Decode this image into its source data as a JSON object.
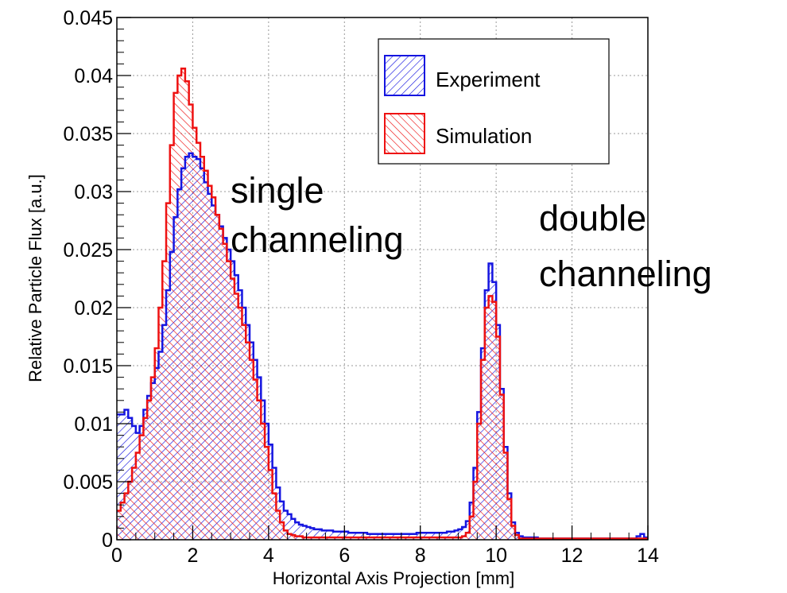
{
  "chart_data": {
    "type": "histogram",
    "xlabel": "Horizontal Axis Projection [mm]",
    "ylabel": "Relative Particle Flux [a.u.]",
    "xlim": [
      0,
      14
    ],
    "ylim": [
      0,
      0.045
    ],
    "grid": true,
    "x_ticks": [
      "0",
      "2",
      "4",
      "6",
      "8",
      "10",
      "12",
      "14"
    ],
    "y_ticks": [
      "0",
      "0.005",
      "0.01",
      "0.015",
      "0.02",
      "0.025",
      "0.03",
      "0.035",
      "0.04",
      "0.045"
    ],
    "bin_width": 0.1,
    "bin_start": 0,
    "legend_position": "top-right",
    "colors": {
      "experiment": "#1515e0",
      "simulation": "#ee1111",
      "grid": "#999999"
    },
    "series": [
      {
        "name": "Experiment",
        "hatch": "diagonal-down",
        "values": [
          0.0108,
          0.0108,
          0.0112,
          0.0105,
          0.0098,
          0.0092,
          0.0098,
          0.0112,
          0.0124,
          0.0135,
          0.0148,
          0.0162,
          0.0185,
          0.0215,
          0.0248,
          0.0278,
          0.0302,
          0.032,
          0.033,
          0.0333,
          0.033,
          0.0328,
          0.032,
          0.0308,
          0.0298,
          0.0288,
          0.028,
          0.027,
          0.026,
          0.025,
          0.024,
          0.0228,
          0.0215,
          0.02,
          0.0185,
          0.017,
          0.0155,
          0.014,
          0.012,
          0.01,
          0.0082,
          0.0062,
          0.0045,
          0.0033,
          0.0025,
          0.0022,
          0.0018,
          0.0015,
          0.0013,
          0.0012,
          0.0011,
          0.001,
          0.0009,
          0.0009,
          0.0008,
          0.0008,
          0.0008,
          0.0007,
          0.0007,
          0.0007,
          0.0007,
          0.0006,
          0.0006,
          0.0006,
          0.0006,
          0.0006,
          0.0005,
          0.0005,
          0.0005,
          0.0005,
          0.0005,
          0.0005,
          0.0005,
          0.0005,
          0.0005,
          0.0005,
          0.0005,
          0.0005,
          0.0005,
          0.0006,
          0.0006,
          0.0006,
          0.0006,
          0.0006,
          0.0006,
          0.0006,
          0.0006,
          0.0007,
          0.0007,
          0.0008,
          0.0009,
          0.0011,
          0.0016,
          0.0032,
          0.0062,
          0.011,
          0.0165,
          0.0215,
          0.0238,
          0.0222,
          0.0185,
          0.013,
          0.008,
          0.004,
          0.0015,
          0.0006,
          0.0003,
          0.0002,
          0.0002,
          0.0002,
          0.0002,
          0.0001,
          0.0001,
          0.0001,
          0.0001,
          0.0001,
          0.0001,
          0.0001,
          0.0001,
          0.0001,
          0.0001,
          0.0001,
          0.0001,
          0.0001,
          0.0001,
          0.0001,
          0.0001,
          0.0001,
          0.0001,
          0.0001,
          0.0001,
          0.0001,
          0.0001,
          0.0001,
          0.0001,
          0.0001,
          0.0001,
          0.0003,
          0.0005,
          0.0002
        ]
      },
      {
        "name": "Simulation",
        "hatch": "diagonal-up",
        "values": [
          0.0025,
          0.0032,
          0.004,
          0.005,
          0.0062,
          0.0075,
          0.009,
          0.0105,
          0.012,
          0.014,
          0.0165,
          0.02,
          0.024,
          0.029,
          0.034,
          0.0385,
          0.04,
          0.0406,
          0.0395,
          0.0375,
          0.0355,
          0.0342,
          0.033,
          0.0318,
          0.0305,
          0.0295,
          0.028,
          0.0268,
          0.0255,
          0.024,
          0.0225,
          0.0212,
          0.02,
          0.0185,
          0.017,
          0.0155,
          0.0138,
          0.012,
          0.01,
          0.008,
          0.006,
          0.004,
          0.0025,
          0.0015,
          0.0008,
          0.0005,
          0.0004,
          0.0003,
          0.0003,
          0.0002,
          0.0002,
          0.0002,
          0.0002,
          0.0002,
          0.0002,
          0.0002,
          0.0002,
          0.0002,
          0.0002,
          0.0002,
          0.0002,
          0.0002,
          0.0002,
          0.0002,
          0.0002,
          0.0002,
          0.0002,
          0.0002,
          0.0002,
          0.0002,
          0.0002,
          0.0002,
          0.0002,
          0.0002,
          0.0002,
          0.0002,
          0.0002,
          0.0002,
          0.0002,
          0.0002,
          0.0002,
          0.0002,
          0.0002,
          0.0002,
          0.0002,
          0.0002,
          0.0002,
          0.0002,
          0.0002,
          0.0002,
          0.0002,
          0.0003,
          0.0006,
          0.002,
          0.005,
          0.01,
          0.0155,
          0.02,
          0.021,
          0.0205,
          0.0175,
          0.0125,
          0.0075,
          0.0035,
          0.0012,
          0.0004,
          0.0001,
          0.0001,
          0.0001,
          0.0001,
          0.0001,
          0.0001,
          0.0001,
          0.0001,
          0.0001,
          0.0001,
          0.0001,
          0.0001,
          0.0001,
          0.0001,
          0.0001,
          0.0001,
          0.0001,
          0.0001,
          0.0001,
          0.0001,
          0.0001,
          0.0001,
          0.0001,
          0.0001,
          0.0001,
          0.0001,
          0.0001,
          0.0001,
          0.0001,
          0.0001,
          0.0001,
          0.0001,
          0.0001,
          0.0001
        ]
      }
    ],
    "annotations": [
      {
        "id": "single",
        "lines": [
          "single",
          "channeling"
        ]
      },
      {
        "id": "double",
        "lines": [
          "double",
          "channeling"
        ]
      }
    ]
  }
}
